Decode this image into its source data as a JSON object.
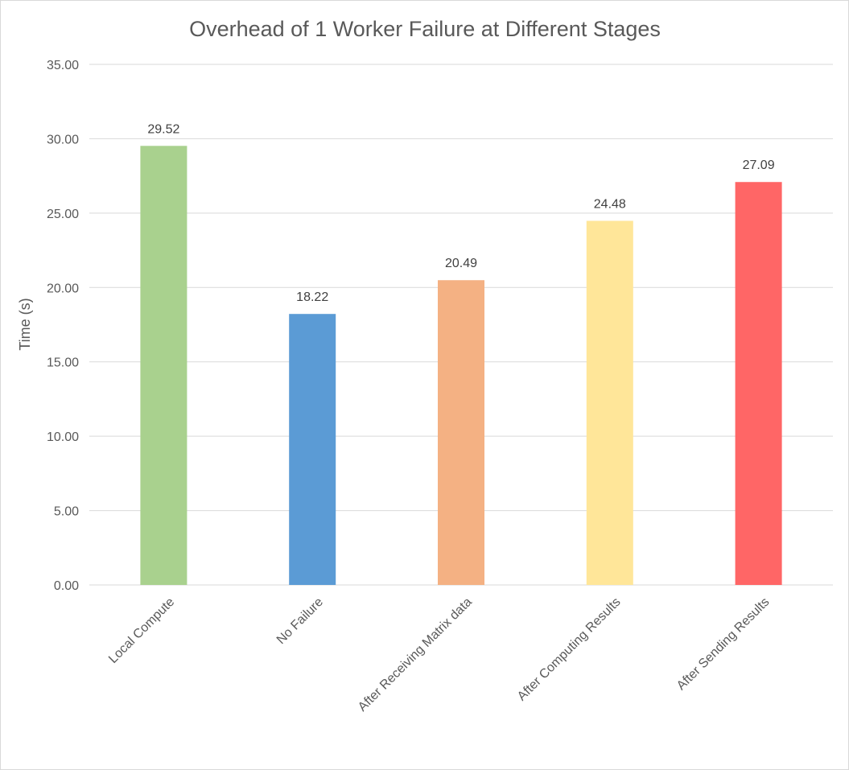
{
  "chart_data": {
    "type": "bar",
    "title": "Overhead of 1 Worker Failure at Different Stages",
    "xlabel": "",
    "ylabel": "Time (s)",
    "ylim": [
      0,
      35
    ],
    "yticks": [
      "0.00",
      "5.00",
      "10.00",
      "15.00",
      "20.00",
      "25.00",
      "30.00",
      "35.00"
    ],
    "grid": true,
    "legend": "none",
    "categories": [
      "Local Compute",
      "No Failure",
      "After Receiving Matrix data",
      "After Computing Results",
      "After Sending Results"
    ],
    "values": [
      29.52,
      18.22,
      20.49,
      24.48,
      27.09
    ],
    "data_labels": [
      "29.52",
      "18.22",
      "20.49",
      "24.48",
      "27.09"
    ],
    "colors": [
      "#a9d18e",
      "#5b9bd5",
      "#f4b183",
      "#ffe699",
      "#ff6666"
    ],
    "gridline_color": "#d9d9d9",
    "text_color": "#595959"
  }
}
